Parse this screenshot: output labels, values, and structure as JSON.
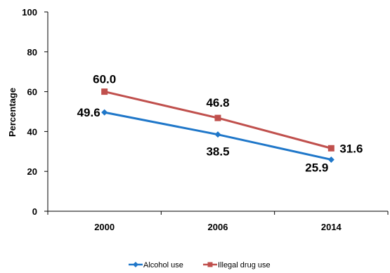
{
  "chart_data": {
    "type": "line",
    "categories": [
      "2000",
      "2006",
      "2014"
    ],
    "ylabel": "Percentage",
    "ylim": [
      0,
      100
    ],
    "yticks": [
      "0",
      "20",
      "40",
      "60",
      "80",
      "100"
    ],
    "grid": false,
    "legend_position": "bottom",
    "series": [
      {
        "name": "Alcohol use",
        "values": [
          49.6,
          38.5,
          25.9
        ],
        "labels": [
          "49.6",
          "38.5",
          "25.9"
        ],
        "color": "#1f77c9",
        "marker": "diamond"
      },
      {
        "name": "Illegal drug use",
        "values": [
          60.0,
          46.8,
          31.6
        ],
        "labels": [
          "60.0",
          "46.8",
          "31.6"
        ],
        "color": "#c0504d",
        "marker": "square"
      }
    ]
  }
}
